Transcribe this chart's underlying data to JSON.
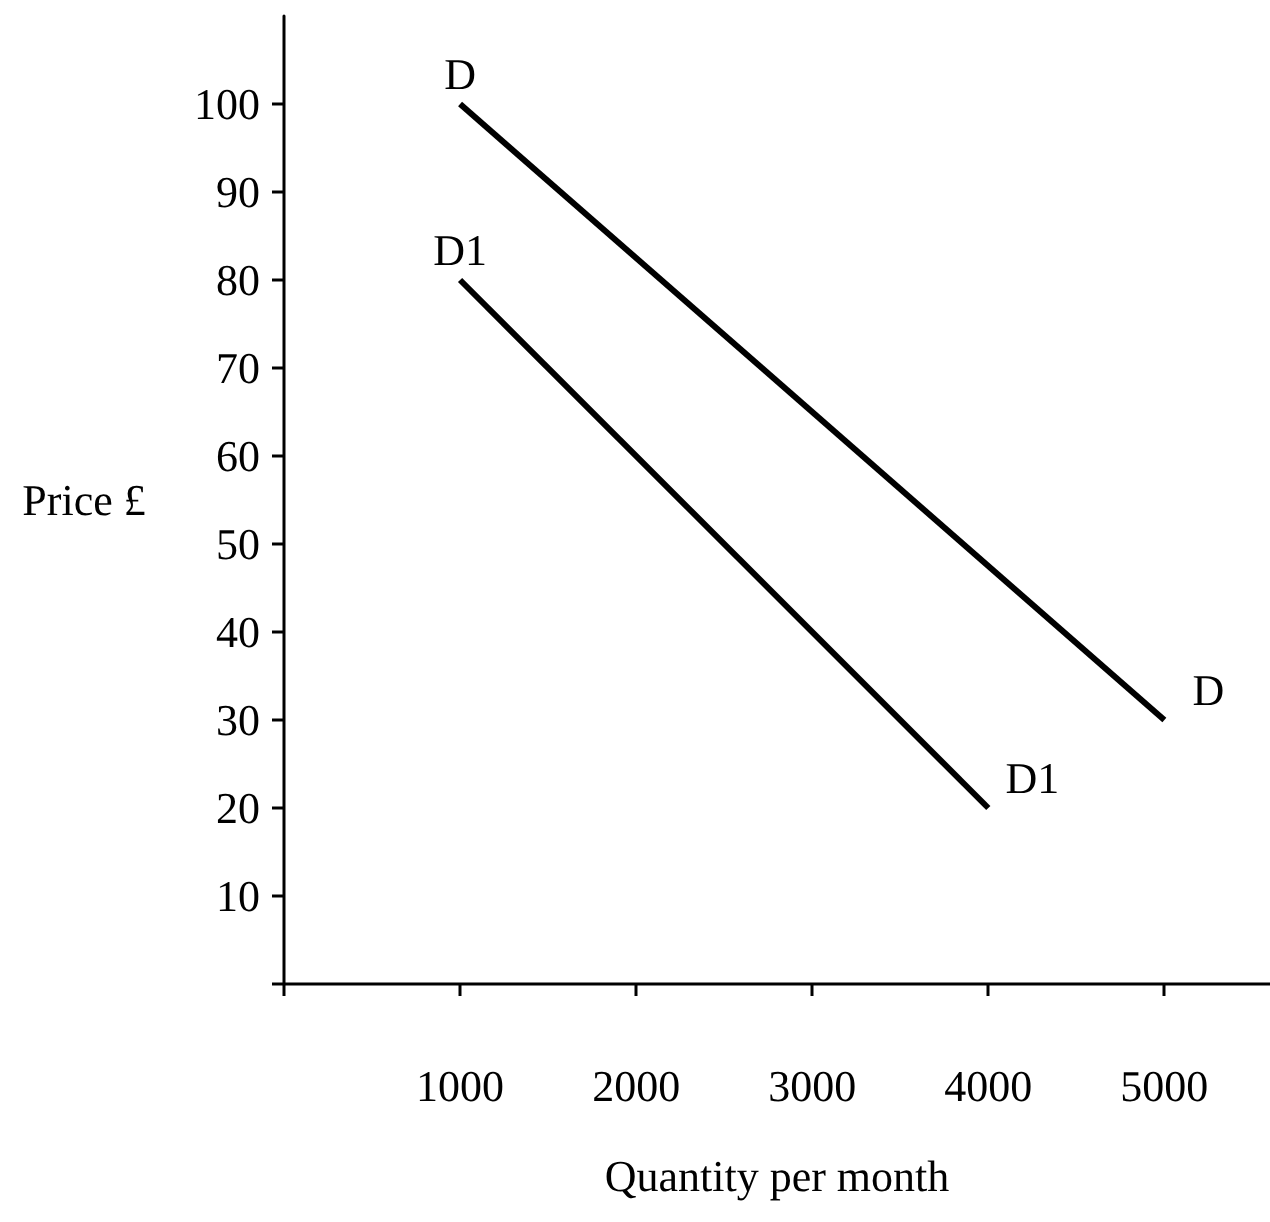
{
  "chart_data": {
    "type": "line",
    "xlabel": "Quantity per month",
    "ylabel": "Price £",
    "xlim": [
      0,
      5600
    ],
    "xticks": [
      {
        "value": 0,
        "label": null
      },
      1000,
      2000,
      3000,
      4000,
      5000
    ],
    "ylim": [
      0,
      110
    ],
    "yticks": [
      {
        "value": 0,
        "label": null
      },
      10,
      20,
      30,
      40,
      50,
      60,
      70,
      80,
      90,
      100
    ],
    "series": [
      {
        "name": "D",
        "color": "#000000",
        "x": [
          1000,
          5000
        ],
        "values": [
          100,
          30
        ]
      },
      {
        "name": "D1",
        "color": "#000000",
        "x": [
          1000,
          4000
        ],
        "values": [
          80,
          20
        ]
      }
    ],
    "grid": false,
    "legend": false,
    "marker": "none",
    "line_style": "solid"
  }
}
